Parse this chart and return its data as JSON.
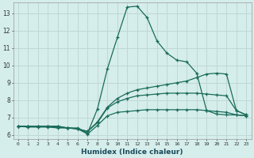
{
  "xlabel": "Humidex (Indice chaleur)",
  "background_color": "#d5eeeb",
  "grid_color": "#c0d8d5",
  "line_color": "#1a6b5a",
  "xlim": [
    -0.5,
    23.5
  ],
  "ylim": [
    5.75,
    13.6
  ],
  "yticks": [
    6,
    7,
    8,
    9,
    10,
    11,
    12,
    13
  ],
  "xticks": [
    0,
    1,
    2,
    3,
    4,
    5,
    6,
    7,
    8,
    9,
    10,
    11,
    12,
    13,
    14,
    15,
    16,
    17,
    18,
    19,
    20,
    21,
    22,
    23
  ],
  "xtick_labels": [
    "0",
    "1",
    "2",
    "3",
    "4",
    "5",
    "6",
    "7",
    "8",
    "9",
    "10",
    "11",
    "12",
    "13",
    "14",
    "15",
    "16",
    "17",
    "18",
    "19",
    "20",
    "21",
    "22",
    "23"
  ],
  "series": [
    {
      "x": [
        0,
        1,
        2,
        3,
        4,
        5,
        6,
        7,
        8,
        9,
        10,
        11,
        12,
        13,
        14,
        15,
        16,
        17,
        18,
        19,
        20,
        21,
        22,
        23
      ],
      "y": [
        6.5,
        6.5,
        6.5,
        6.5,
        6.5,
        6.4,
        6.4,
        6.1,
        7.5,
        9.8,
        11.6,
        13.35,
        13.4,
        12.75,
        11.4,
        10.7,
        10.3,
        10.2,
        9.55,
        7.4,
        7.2,
        7.15,
        7.15,
        7.1
      ]
    },
    {
      "x": [
        0,
        1,
        2,
        3,
        4,
        5,
        6,
        7,
        8,
        9,
        10,
        11,
        12,
        13,
        14,
        15,
        16,
        17,
        18,
        19,
        20,
        21,
        22,
        23
      ],
      "y": [
        6.5,
        6.5,
        6.5,
        6.5,
        6.5,
        6.4,
        6.35,
        6.2,
        6.75,
        7.6,
        8.1,
        8.4,
        8.6,
        8.7,
        8.8,
        8.9,
        9.0,
        9.1,
        9.3,
        9.5,
        9.55,
        9.5,
        7.4,
        7.15
      ]
    },
    {
      "x": [
        0,
        1,
        2,
        3,
        4,
        5,
        6,
        7,
        8,
        9,
        10,
        11,
        12,
        13,
        14,
        15,
        16,
        17,
        18,
        19,
        20,
        21,
        22,
        23
      ],
      "y": [
        6.5,
        6.5,
        6.5,
        6.5,
        6.45,
        6.4,
        6.35,
        6.2,
        6.7,
        7.55,
        7.9,
        8.1,
        8.25,
        8.3,
        8.35,
        8.4,
        8.4,
        8.4,
        8.4,
        8.35,
        8.3,
        8.25,
        7.4,
        7.15
      ]
    },
    {
      "x": [
        0,
        1,
        2,
        3,
        4,
        5,
        6,
        7,
        8,
        9,
        10,
        11,
        12,
        13,
        14,
        15,
        16,
        17,
        18,
        19,
        20,
        21,
        22,
        23
      ],
      "y": [
        6.5,
        6.45,
        6.45,
        6.45,
        6.4,
        6.4,
        6.35,
        6.05,
        6.55,
        7.1,
        7.3,
        7.35,
        7.4,
        7.45,
        7.45,
        7.45,
        7.45,
        7.45,
        7.45,
        7.4,
        7.35,
        7.3,
        7.15,
        7.1
      ]
    }
  ]
}
